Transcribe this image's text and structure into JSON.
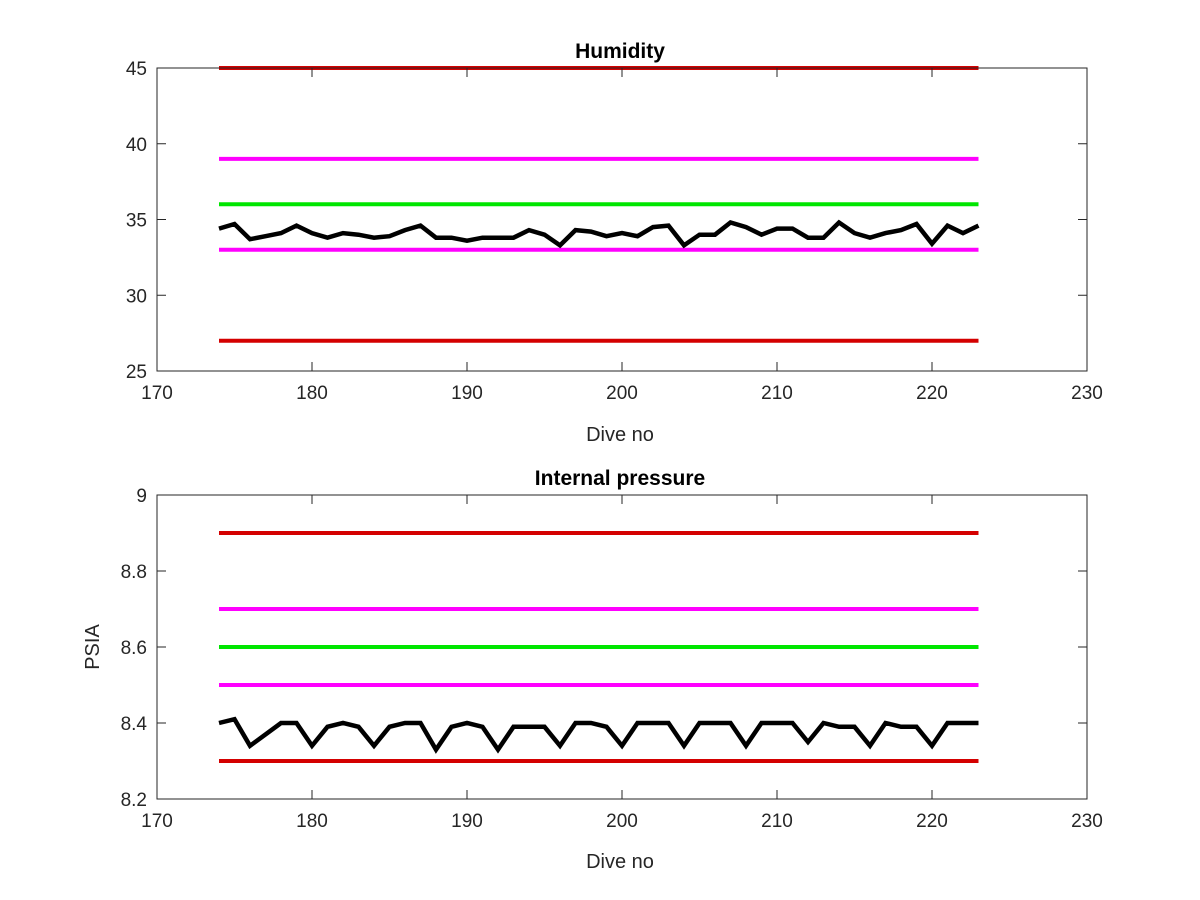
{
  "chart_data": [
    {
      "type": "line",
      "title": "Humidity",
      "xlabel": "Dive no",
      "ylabel": "",
      "xlim": [
        170,
        230
      ],
      "ylim": [
        25,
        45
      ],
      "xticks": [
        "170",
        "180",
        "190",
        "200",
        "210",
        "220",
        "230"
      ],
      "yticks": [
        "25",
        "30",
        "35",
        "40",
        "45"
      ],
      "grid": false,
      "series": [
        {
          "color": "#d40000",
          "x": [
            174,
            223
          ],
          "values": [
            45,
            45
          ]
        },
        {
          "color": "#ff00ff",
          "x": [
            174,
            223
          ],
          "values": [
            39,
            39
          ]
        },
        {
          "color": "#00e600",
          "x": [
            174,
            223
          ],
          "values": [
            36,
            36
          ]
        },
        {
          "color": "#ff00ff",
          "x": [
            174,
            223
          ],
          "values": [
            33,
            33
          ]
        },
        {
          "color": "#d40000",
          "x": [
            174,
            223
          ],
          "values": [
            27,
            27
          ]
        },
        {
          "color": "#000000",
          "x": [
            174,
            175,
            176,
            177,
            178,
            179,
            180,
            181,
            182,
            183,
            184,
            185,
            186,
            187,
            188,
            189,
            190,
            191,
            192,
            193,
            194,
            195,
            196,
            197,
            198,
            199,
            200,
            201,
            202,
            203,
            204,
            205,
            206,
            207,
            208,
            209,
            210,
            211,
            212,
            213,
            214,
            215,
            216,
            217,
            218,
            219,
            220,
            221,
            222,
            223
          ],
          "values": [
            34.4,
            34.7,
            33.7,
            33.9,
            34.1,
            34.6,
            34.1,
            33.8,
            34.1,
            34.0,
            33.8,
            33.9,
            34.3,
            34.6,
            33.8,
            33.8,
            33.6,
            33.8,
            33.8,
            33.8,
            34.3,
            34.0,
            33.3,
            34.3,
            34.2,
            33.9,
            34.1,
            33.9,
            34.5,
            34.6,
            33.3,
            34.0,
            34.0,
            34.8,
            34.5,
            34.0,
            34.4,
            34.4,
            33.8,
            33.8,
            34.8,
            34.1,
            33.8,
            34.1,
            34.3,
            34.7,
            33.4,
            34.6,
            34.1,
            34.6
          ]
        }
      ]
    },
    {
      "type": "line",
      "title": "Internal pressure",
      "xlabel": "Dive no",
      "ylabel": "PSIA",
      "xlim": [
        170,
        230
      ],
      "ylim": [
        8.2,
        9
      ],
      "xticks": [
        "170",
        "180",
        "190",
        "200",
        "210",
        "220",
        "230"
      ],
      "yticks": [
        "8.2",
        "8.4",
        "8.6",
        "8.8",
        "9"
      ],
      "grid": false,
      "series": [
        {
          "color": "#d40000",
          "x": [
            174,
            223
          ],
          "values": [
            8.9,
            8.9
          ]
        },
        {
          "color": "#ff00ff",
          "x": [
            174,
            223
          ],
          "values": [
            8.7,
            8.7
          ]
        },
        {
          "color": "#00e600",
          "x": [
            174,
            223
          ],
          "values": [
            8.6,
            8.6
          ]
        },
        {
          "color": "#ff00ff",
          "x": [
            174,
            223
          ],
          "values": [
            8.5,
            8.5
          ]
        },
        {
          "color": "#d40000",
          "x": [
            174,
            223
          ],
          "values": [
            8.3,
            8.3
          ]
        },
        {
          "color": "#000000",
          "x": [
            174,
            175,
            176,
            177,
            178,
            179,
            180,
            181,
            182,
            183,
            184,
            185,
            186,
            187,
            188,
            189,
            190,
            191,
            192,
            193,
            194,
            195,
            196,
            197,
            198,
            199,
            200,
            201,
            202,
            203,
            204,
            205,
            206,
            207,
            208,
            209,
            210,
            211,
            212,
            213,
            214,
            215,
            216,
            217,
            218,
            219,
            220,
            221,
            222,
            223
          ],
          "values": [
            8.4,
            8.41,
            8.34,
            8.37,
            8.4,
            8.4,
            8.34,
            8.39,
            8.4,
            8.39,
            8.34,
            8.39,
            8.4,
            8.4,
            8.33,
            8.39,
            8.4,
            8.39,
            8.33,
            8.39,
            8.39,
            8.39,
            8.34,
            8.4,
            8.4,
            8.39,
            8.34,
            8.4,
            8.4,
            8.4,
            8.34,
            8.4,
            8.4,
            8.4,
            8.34,
            8.4,
            8.4,
            8.4,
            8.35,
            8.4,
            8.39,
            8.39,
            8.34,
            8.4,
            8.39,
            8.39,
            8.34,
            8.4,
            8.4,
            8.4
          ]
        }
      ]
    }
  ]
}
